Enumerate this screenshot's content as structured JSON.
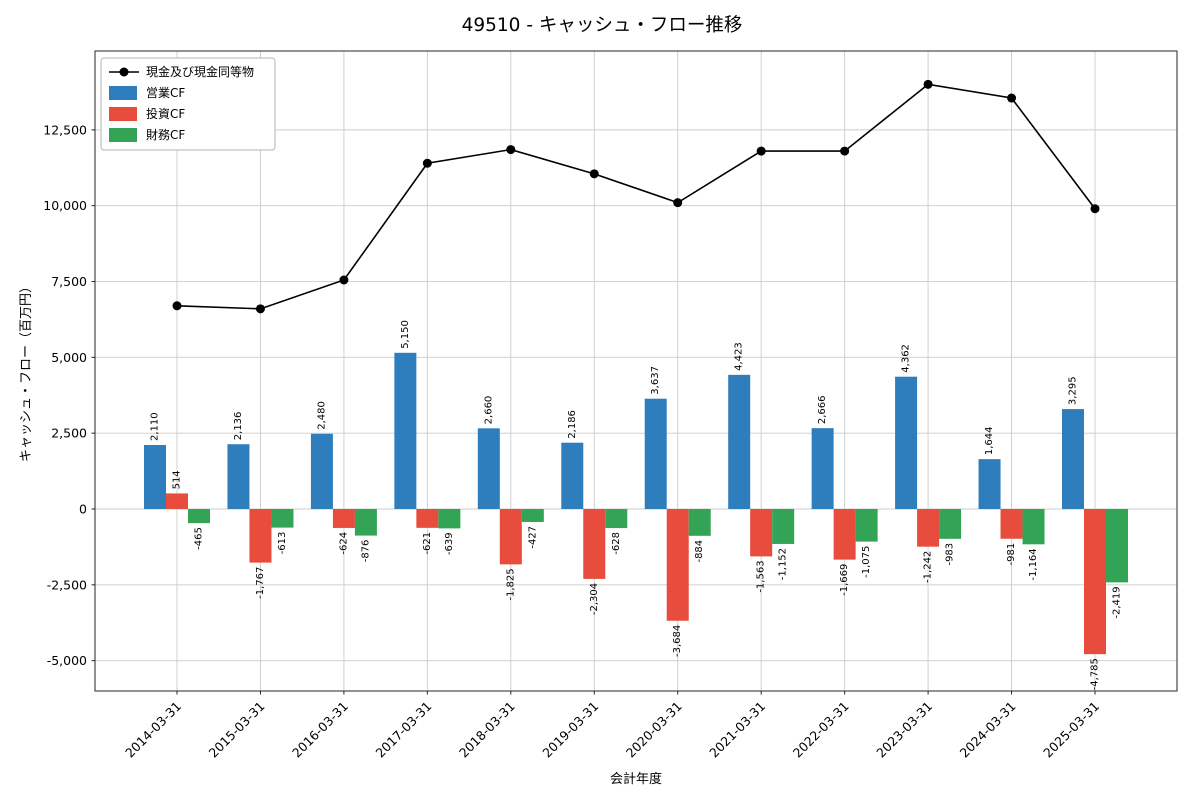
{
  "chart_data": {
    "type": "bar+line",
    "title": "49510 - キャッシュ・フロー推移",
    "xlabel": "会計年度",
    "ylabel": "キャッシュ・フロー（百万円）",
    "categories": [
      "2014-03-31",
      "2015-03-31",
      "2016-03-31",
      "2017-03-31",
      "2018-03-31",
      "2019-03-31",
      "2020-03-31",
      "2021-03-31",
      "2022-03-31",
      "2023-03-31",
      "2024-03-31",
      "2025-03-31"
    ],
    "series": [
      {
        "name": "営業CF",
        "type": "bar",
        "color": "#2e7ebd",
        "values": [
          2110,
          2136,
          2480,
          5150,
          2660,
          2186,
          3637,
          4423,
          2666,
          4362,
          1644,
          3295
        ]
      },
      {
        "name": "投資CF",
        "type": "bar",
        "color": "#e74c3c",
        "values": [
          514,
          -1767,
          -624,
          -621,
          -1825,
          -2304,
          -3684,
          -1563,
          -1669,
          -1242,
          -981,
          -4785
        ]
      },
      {
        "name": "財務CF",
        "type": "bar",
        "color": "#33a456",
        "values": [
          -465,
          -613,
          -876,
          -639,
          -427,
          -628,
          -884,
          -1152,
          -1075,
          -983,
          -1164,
          -2419
        ]
      },
      {
        "name": "現金及び現金同等物",
        "type": "line",
        "color": "#000000",
        "values": [
          6700,
          6600,
          7550,
          11400,
          11850,
          11050,
          10100,
          11800,
          11800,
          14000,
          13550,
          9900
        ]
      }
    ],
    "ylim": [
      -6000,
      15100
    ],
    "yticks": [
      -5000,
      -2500,
      0,
      2500,
      5000,
      7500,
      10000,
      12500
    ],
    "grid": true,
    "legend_position": "upper-left"
  }
}
